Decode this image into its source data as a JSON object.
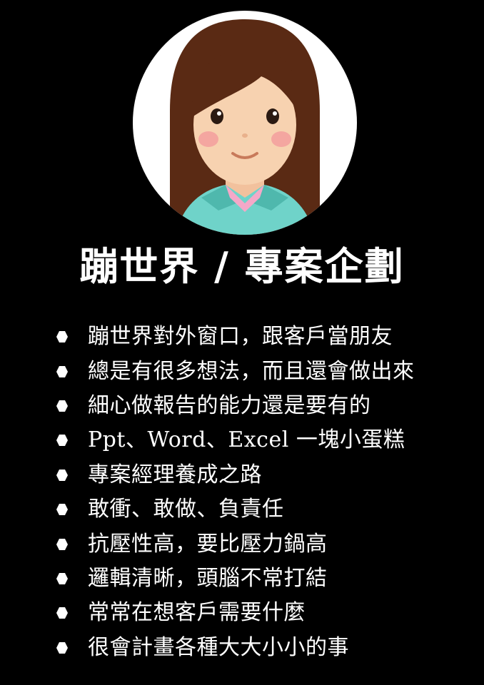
{
  "profile": {
    "avatar_icon": "girl-avatar-icon",
    "title": "蹦世界 / 專案企劃"
  },
  "bullets": [
    {
      "icon": "hexagon-bullet-icon",
      "text": "蹦世界對外窗口，跟客戶當朋友"
    },
    {
      "icon": "hexagon-bullet-icon",
      "text": "總是有很多想法，而且還會做出來"
    },
    {
      "icon": "hexagon-bullet-icon",
      "text": "細心做報告的能力還是要有的"
    },
    {
      "icon": "hexagon-bullet-icon",
      "text": "Ppt、Word、Excel 一塊小蛋糕"
    },
    {
      "icon": "hexagon-bullet-icon",
      "text": "專案經理養成之路"
    },
    {
      "icon": "hexagon-bullet-icon",
      "text": "敢衝、敢做、負責任"
    },
    {
      "icon": "hexagon-bullet-icon",
      "text": "抗壓性高，要比壓力鍋高"
    },
    {
      "icon": "hexagon-bullet-icon",
      "text": "邏輯清晰，頭腦不常打結"
    },
    {
      "icon": "hexagon-bullet-icon",
      "text": "常常在想客戶需要什麼"
    },
    {
      "icon": "hexagon-bullet-icon",
      "text": "很會計畫各種大大小小的事"
    }
  ],
  "colors": {
    "background": "#000000",
    "text": "#ffffff",
    "hair": "#5a2a14",
    "skin": "#f7d2b0",
    "cheek": "#f4a6a0",
    "jacket": "#6fd3c9",
    "shirt": "#f4a8c8"
  }
}
